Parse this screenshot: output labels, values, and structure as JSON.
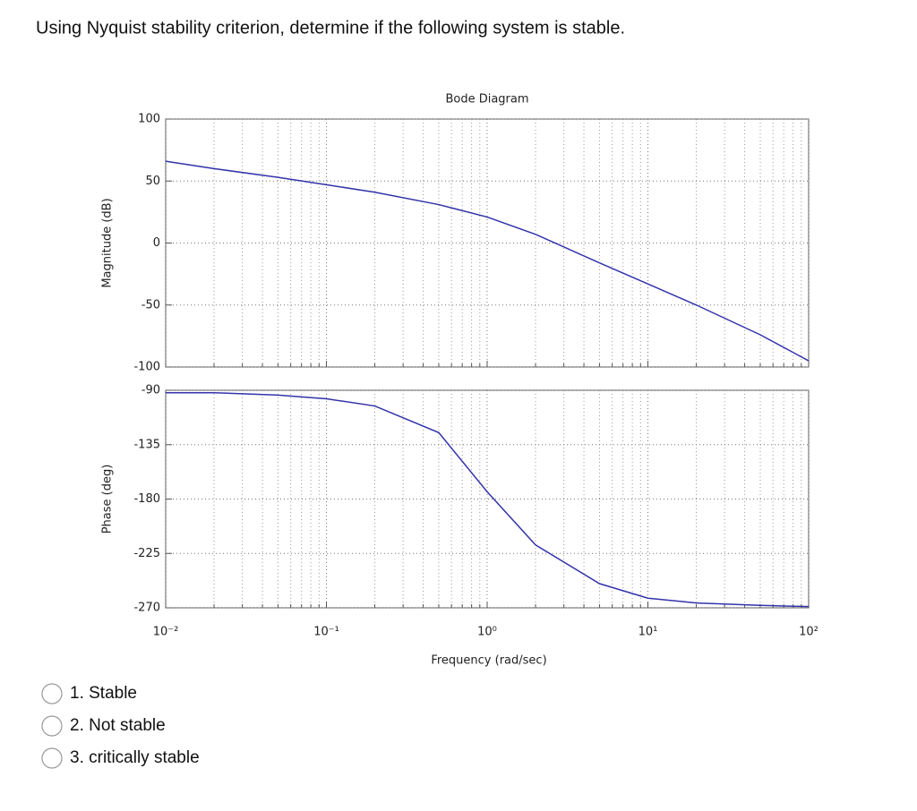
{
  "question": "Using Nyquist stability criterion, determine if the following system is stable.",
  "options": [
    "1. Stable",
    "2. Not stable",
    "3. critically stable"
  ],
  "chart_data": [
    {
      "type": "line",
      "title": "Bode Diagram",
      "ylabel": "Magnitude (dB)",
      "xscale": "log",
      "grid": true,
      "color": "#3333aa",
      "x": [
        0.01,
        0.02,
        0.05,
        0.1,
        0.2,
        0.5,
        1,
        2,
        5,
        10,
        20,
        50,
        100
      ],
      "values": [
        66,
        60,
        53,
        47,
        41,
        31,
        21,
        7,
        -16,
        -33,
        -50,
        -74,
        -95
      ],
      "xlim": [
        0.01,
        100
      ],
      "xticks": [
        0.01,
        0.1,
        1,
        10,
        100
      ],
      "ylim": [
        -100,
        100
      ],
      "yticks": [
        -100,
        -50,
        0,
        50,
        100
      ]
    },
    {
      "type": "line",
      "ylabel": "Phase (deg)",
      "xlabel": "Frequency  (rad/sec)",
      "xscale": "log",
      "grid": true,
      "color": "#3333aa",
      "x": [
        0.01,
        0.02,
        0.05,
        0.1,
        0.2,
        0.5,
        1,
        2,
        5,
        10,
        20,
        50,
        100
      ],
      "values": [
        -92,
        -92,
        -94,
        -97,
        -103,
        -125,
        -174,
        -218,
        -250,
        -262,
        -266,
        -268,
        -269
      ],
      "xlim": [
        0.01,
        100
      ],
      "xticks": [
        {
          "value": 0.01,
          "label": "10⁻²"
        },
        {
          "value": 0.1,
          "label": "10⁻¹"
        },
        {
          "value": 1,
          "label": "10⁰"
        },
        {
          "value": 10,
          "label": "10¹"
        },
        {
          "value": 100,
          "label": "10²"
        }
      ],
      "ylim": [
        -270,
        -90
      ],
      "yticks": [
        -270,
        -225,
        -180,
        -135,
        -90
      ]
    }
  ]
}
